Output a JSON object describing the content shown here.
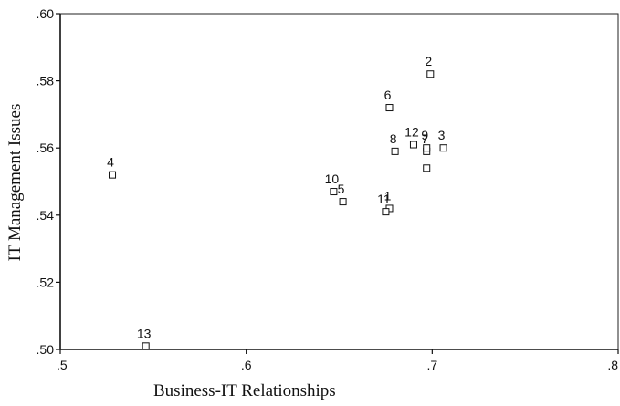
{
  "chart_data": {
    "type": "scatter",
    "title": "",
    "xlabel": "Business-IT Relationships",
    "ylabel": "IT Management Issues",
    "xlim": [
      0.5,
      0.8
    ],
    "ylim": [
      0.5,
      0.6
    ],
    "x_ticks": [
      0.5,
      0.6,
      0.7,
      0.8
    ],
    "x_tick_labels": [
      ".5",
      ".6",
      ".7",
      ".8"
    ],
    "y_ticks": [
      0.5,
      0.52,
      0.54,
      0.56,
      0.58,
      0.6
    ],
    "y_tick_labels": [
      ".50",
      ".52",
      ".54",
      ".56",
      ".58",
      ".60"
    ],
    "grid": false,
    "marker": "open-square",
    "points": [
      {
        "label": "1",
        "x": 0.677,
        "y": 0.542
      },
      {
        "label": "2",
        "x": 0.699,
        "y": 0.582
      },
      {
        "label": "3",
        "x": 0.706,
        "y": 0.56
      },
      {
        "label": "4",
        "x": 0.528,
        "y": 0.552
      },
      {
        "label": "5",
        "x": 0.652,
        "y": 0.544
      },
      {
        "label": "6",
        "x": 0.677,
        "y": 0.572
      },
      {
        "label": "7",
        "x": 0.697,
        "y": 0.559
      },
      {
        "label": "8",
        "x": 0.68,
        "y": 0.559
      },
      {
        "label": "9",
        "x": 0.697,
        "y": 0.56
      },
      {
        "label": "10",
        "x": 0.647,
        "y": 0.547
      },
      {
        "label": "11",
        "x": 0.675,
        "y": 0.541
      },
      {
        "label": "12",
        "x": 0.69,
        "y": 0.561
      },
      {
        "label": "13",
        "x": 0.546,
        "y": 0.501
      },
      {
        "label": "",
        "x": 0.697,
        "y": 0.554
      }
    ]
  }
}
